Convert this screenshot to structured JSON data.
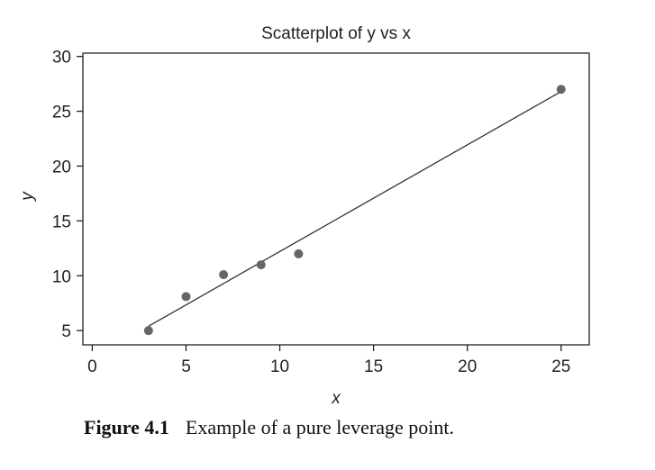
{
  "chart_data": {
    "type": "scatter",
    "title": "Scatterplot of y vs x",
    "xlabel": "x",
    "ylabel": "y",
    "xlim": [
      -0.5,
      26.5
    ],
    "ylim": [
      3.7,
      30.3
    ],
    "xticks": [
      0,
      5,
      10,
      15,
      20,
      25
    ],
    "yticks": [
      5,
      10,
      15,
      20,
      25,
      30
    ],
    "grid": false,
    "points": [
      {
        "x": 3,
        "y": 5
      },
      {
        "x": 5,
        "y": 8.1
      },
      {
        "x": 7,
        "y": 10.1
      },
      {
        "x": 9,
        "y": 11
      },
      {
        "x": 11,
        "y": 12
      },
      {
        "x": 25,
        "y": 27
      }
    ],
    "fit_line": {
      "x_start": 3,
      "y_start": 5.4,
      "x_end": 25,
      "y_end": 26.8
    },
    "colors": {
      "points": "#666666",
      "line": "#333333",
      "axes": "#222222"
    }
  },
  "caption": {
    "figure_number": "Figure 4.1",
    "text": "Example of a pure leverage point."
  }
}
